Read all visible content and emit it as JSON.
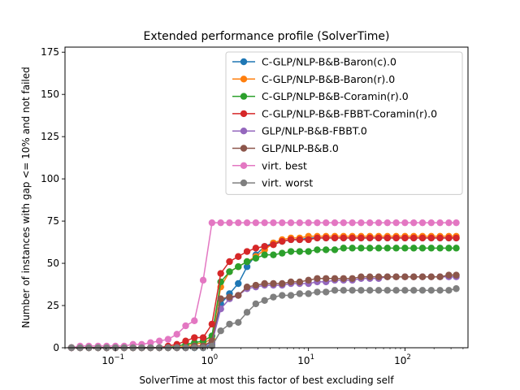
{
  "chart_data": {
    "type": "line",
    "title": "Extended performance profile (SolverTime)",
    "xlabel": "SolverTime at most this factor of best excluding self",
    "ylabel": "Number of instances with gap <= 10% and not failed",
    "xscale": "log",
    "xlim": [
      0.03,
      450
    ],
    "ylim": [
      0,
      178
    ],
    "x_ticks": [
      {
        "value": 0.1,
        "base": "10",
        "exp": "−1"
      },
      {
        "value": 1,
        "base": "10",
        "exp": "0"
      },
      {
        "value": 10,
        "base": "10",
        "exp": "1"
      },
      {
        "value": 100,
        "base": "10",
        "exp": "2"
      }
    ],
    "y_ticks": [
      0,
      25,
      50,
      75,
      100,
      125,
      150,
      175
    ],
    "y_tick_labels": [
      "0",
      "25",
      "50",
      "75",
      "100",
      "125",
      "150",
      "175"
    ],
    "legend_position": "upper-right",
    "x": [
      0.035,
      0.043,
      0.053,
      0.066,
      0.081,
      0.1,
      0.123,
      0.152,
      0.187,
      0.231,
      0.285,
      0.351,
      0.433,
      0.534,
      0.658,
      0.811,
      1.0,
      1.233,
      1.52,
      1.874,
      2.31,
      2.848,
      3.511,
      4.329,
      5.337,
      6.58,
      8.111,
      10.0,
      12.33,
      15.2,
      18.74,
      23.1,
      28.48,
      35.11,
      43.29,
      53.37,
      65.8,
      81.11,
      100.0,
      123.3,
      152.0,
      187.4,
      231.0,
      284.8,
      340.0
    ],
    "series": [
      {
        "name": "C-GLP/NLP-B&B-Baron(c).0",
        "color": "#1f77b4",
        "values": [
          0,
          0,
          0,
          0,
          0,
          0,
          0,
          0,
          0,
          0,
          0,
          0,
          0,
          0,
          0,
          0,
          2,
          26,
          32,
          38,
          48,
          55,
          60,
          62,
          63,
          64,
          64,
          65,
          65,
          65,
          65,
          65,
          65,
          65,
          65,
          65,
          65,
          65,
          65,
          65,
          65,
          65,
          65,
          65,
          65
        ]
      },
      {
        "name": "C-GLP/NLP-B&B-Baron(r).0",
        "color": "#ff7f0e",
        "values": [
          0,
          0,
          0,
          0,
          0,
          0,
          0,
          0,
          0,
          0,
          0,
          0,
          0,
          1,
          2,
          3,
          5,
          36,
          45,
          48,
          51,
          54,
          58,
          62,
          64,
          65,
          65,
          66,
          66,
          66,
          66,
          66,
          66,
          66,
          66,
          66,
          66,
          66,
          66,
          66,
          66,
          66,
          66,
          66,
          66
        ]
      },
      {
        "name": "C-GLP/NLP-B&B-Coramin(r).0",
        "color": "#2ca02c",
        "values": [
          0,
          0,
          0,
          0,
          0,
          0,
          0,
          0,
          0,
          0,
          0,
          0,
          1,
          2,
          3,
          4,
          7,
          39,
          45,
          48,
          51,
          53,
          55,
          55,
          56,
          57,
          57,
          57,
          58,
          58,
          58,
          59,
          59,
          59,
          59,
          59,
          59,
          59,
          59,
          59,
          59,
          59,
          59,
          59,
          59
        ]
      },
      {
        "name": "C-GLP/NLP-B&B-FBBT-Coramin(r).0",
        "color": "#d62728",
        "values": [
          0,
          0,
          0,
          0,
          0,
          0,
          0,
          0,
          0,
          0,
          0,
          1,
          2,
          4,
          6,
          6,
          14,
          44,
          51,
          54,
          57,
          59,
          60,
          61,
          63,
          64,
          64,
          64,
          65,
          65,
          65,
          65,
          65,
          65,
          65,
          65,
          65,
          65,
          65,
          65,
          65,
          65,
          65,
          65,
          65
        ]
      },
      {
        "name": "GLP/NLP-B&B-FBBT.0",
        "color": "#9467bd",
        "values": [
          0,
          0,
          0,
          0,
          0,
          0,
          0,
          0,
          0,
          0,
          0,
          0,
          0,
          0,
          1,
          1,
          3,
          23,
          29,
          31,
          35,
          36,
          37,
          37,
          37,
          38,
          38,
          38,
          39,
          39,
          40,
          40,
          40,
          41,
          41,
          41,
          42,
          42,
          42,
          42,
          42,
          42,
          42,
          42,
          42
        ]
      },
      {
        "name": "GLP/NLP-B&B.0",
        "color": "#8c564b",
        "values": [
          0,
          0,
          0,
          0,
          0,
          0,
          0,
          0,
          0,
          0,
          0,
          0,
          0,
          0,
          1,
          1,
          4,
          29,
          30,
          31,
          36,
          37,
          38,
          38,
          38,
          39,
          39,
          40,
          41,
          41,
          41,
          41,
          41,
          42,
          42,
          42,
          42,
          42,
          42,
          42,
          42,
          42,
          42,
          43,
          43
        ]
      },
      {
        "name": "virt. best",
        "color": "#e377c2",
        "values": [
          0,
          1,
          1,
          1,
          1,
          1,
          1,
          2,
          2,
          3,
          4,
          5,
          8,
          13,
          16,
          40,
          74,
          74,
          74,
          74,
          74,
          74,
          74,
          74,
          74,
          74,
          74,
          74,
          74,
          74,
          74,
          74,
          74,
          74,
          74,
          74,
          74,
          74,
          74,
          74,
          74,
          74,
          74,
          74,
          74
        ]
      },
      {
        "name": "virt. worst",
        "color": "#7f7f7f",
        "values": [
          0,
          0,
          0,
          0,
          0,
          0,
          0,
          0,
          0,
          0,
          0,
          0,
          0,
          0,
          0,
          0,
          1,
          10,
          14,
          15,
          21,
          26,
          28,
          30,
          31,
          31,
          32,
          32,
          33,
          33,
          34,
          34,
          34,
          34,
          34,
          34,
          34,
          34,
          34,
          34,
          34,
          34,
          34,
          34,
          35
        ]
      }
    ]
  }
}
